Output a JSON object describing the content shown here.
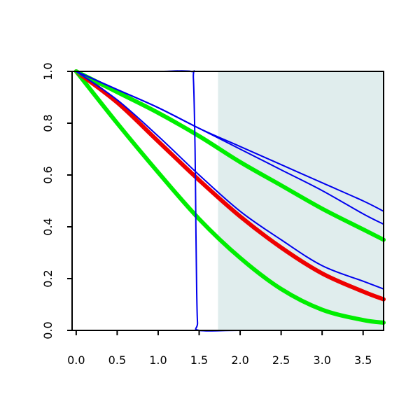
{
  "chart_data": {
    "type": "line",
    "title": "",
    "xlabel": "",
    "ylabel": "",
    "xlim": [
      -0.05,
      3.75
    ],
    "ylim": [
      0,
      1
    ],
    "x_ticks": [
      0.0,
      0.5,
      1.0,
      1.5,
      2.0,
      2.5,
      3.0,
      3.5
    ],
    "x_tick_labels": [
      "0.0",
      "0.5",
      "1.0",
      "1.5",
      "2.0",
      "2.5",
      "3.0",
      "3.5"
    ],
    "y_ticks": [
      0.0,
      0.2,
      0.4,
      0.6,
      0.8,
      1.0
    ],
    "y_tick_labels": [
      "0.0",
      "0.2",
      "0.4",
      "0.6",
      "0.8",
      "1.0"
    ],
    "grid": false,
    "legend": "none",
    "shaded_region": {
      "x_from": 1.73,
      "x_to": 3.75,
      "color": "#e0eded"
    },
    "series": [
      {
        "color": "#00ee00",
        "weight": "thick",
        "x": [
          0,
          0.5,
          1.0,
          1.5,
          2.0,
          2.5,
          3.0,
          3.5,
          3.75
        ],
        "y": [
          1.0,
          0.8,
          0.61,
          0.43,
          0.28,
          0.16,
          0.08,
          0.04,
          0.03
        ]
      },
      {
        "color": "#ee0000",
        "weight": "thick",
        "x": [
          0,
          0.5,
          1.0,
          1.5,
          2.0,
          2.5,
          3.0,
          3.5,
          3.75
        ],
        "y": [
          1.0,
          0.88,
          0.73,
          0.58,
          0.44,
          0.32,
          0.22,
          0.15,
          0.12
        ]
      },
      {
        "color": "#00ee00",
        "weight": "thick",
        "x": [
          0,
          0.5,
          1.0,
          1.5,
          2.0,
          2.5,
          3.0,
          3.5,
          3.75
        ],
        "y": [
          1.0,
          0.92,
          0.84,
          0.75,
          0.65,
          0.56,
          0.47,
          0.39,
          0.35
        ]
      },
      {
        "color": "#0000ee",
        "weight": "thin",
        "x": [
          0,
          0.5,
          1.0,
          1.5,
          2.0,
          2.5,
          3.0,
          3.5,
          3.75
        ],
        "y": [
          1.0,
          0.89,
          0.75,
          0.6,
          0.46,
          0.35,
          0.25,
          0.19,
          0.16
        ]
      },
      {
        "color": "#0000ee",
        "weight": "thin",
        "x": [
          0,
          0.5,
          1.0,
          1.5,
          2.0,
          2.5,
          3.0,
          3.5,
          3.75
        ],
        "y": [
          1.0,
          0.93,
          0.86,
          0.78,
          0.7,
          0.62,
          0.54,
          0.45,
          0.41
        ]
      },
      {
        "color": "#0000ee",
        "weight": "thin",
        "x": [
          0,
          0.5,
          1.0,
          1.5,
          2.0,
          2.5,
          3.0,
          3.5,
          3.75
        ],
        "y": [
          1.0,
          0.93,
          0.86,
          0.78,
          0.71,
          0.64,
          0.57,
          0.5,
          0.46
        ]
      },
      {
        "color": "#0000ee",
        "weight": "thin",
        "x": [
          0,
          0.5,
          1.0,
          1.4,
          1.43,
          1.45,
          1.46,
          1.47,
          1.48,
          1.5,
          2.0,
          3.0,
          3.75
        ],
        "y": [
          1.0,
          1.0,
          1.0,
          1.0,
          0.97,
          0.7,
          0.4,
          0.15,
          0.03,
          0.0,
          0.0,
          0.0,
          0.0
        ]
      }
    ]
  }
}
